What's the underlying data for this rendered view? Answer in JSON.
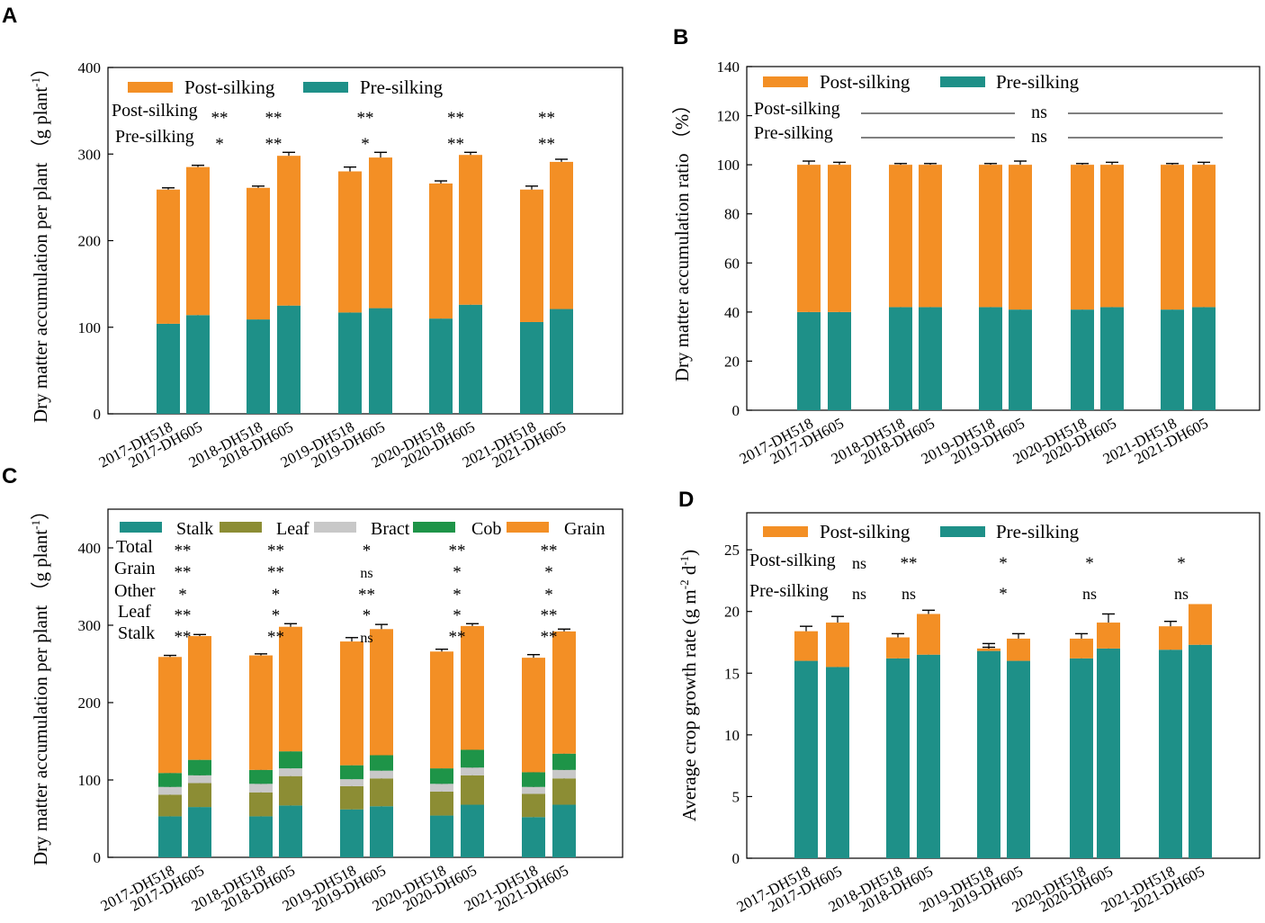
{
  "colors": {
    "post": "#F38F25",
    "pre": "#1E9088",
    "stalk": "#1E9088",
    "leaf": "#8C8D34",
    "bract": "#C8C8C8",
    "cob": "#1E9448",
    "grain": "#F38F25"
  },
  "chart_data": [
    {
      "panel": "A",
      "type": "bar",
      "stacked": true,
      "categories": [
        "2017-DH518",
        "2017-DH605",
        "2018-DH518",
        "2018-DH605",
        "2019-DH518",
        "2019-DH605",
        "2020-DH518",
        "2020-DH605",
        "2021-DH518",
        "2021-DH605"
      ],
      "series": [
        {
          "name": "Pre-silking",
          "values": [
            104,
            114,
            109,
            125,
            117,
            122,
            110,
            126,
            106,
            121
          ],
          "errors": [
            4,
            3,
            3,
            3,
            2,
            3,
            2,
            2,
            3,
            2
          ]
        },
        {
          "name": "Post-silking",
          "values": [
            155,
            171,
            152,
            173,
            163,
            174,
            156,
            173,
            153,
            170
          ],
          "errors": [
            2,
            2,
            2,
            4,
            5,
            6,
            3,
            3,
            4,
            3
          ]
        }
      ],
      "legend": [
        "Post-silking",
        "Pre-silking"
      ],
      "ylabel": "Dry matter accumulation per plant  （g plant",
      "ylabel_sup": "-1",
      "ylabel_end": "）",
      "ylim": [
        0,
        400
      ],
      "yticks": [
        0,
        100,
        200,
        300,
        400
      ],
      "sig_labels": [
        "Post-silking",
        "Pre-silking"
      ],
      "sig_rows": [
        [
          "**",
          "**",
          "**",
          "**",
          "**"
        ],
        [
          "*",
          "**",
          "*",
          "**",
          "**"
        ]
      ]
    },
    {
      "panel": "B",
      "type": "bar",
      "stacked": true,
      "categories": [
        "2017-DH518",
        "2017-DH605",
        "2018-DH518",
        "2018-DH605",
        "2019-DH518",
        "2019-DH605",
        "2020-DH518",
        "2020-DH605",
        "2021-DH518",
        "2021-DH605"
      ],
      "series": [
        {
          "name": "Pre-silking",
          "values": [
            40,
            40,
            42,
            42,
            42,
            41,
            41,
            42,
            41,
            42
          ],
          "errors": [
            1.5,
            1,
            0.5,
            0.5,
            0.5,
            1.5,
            0.5,
            1,
            0.5,
            1
          ]
        },
        {
          "name": "Post-silking",
          "values": [
            60,
            60,
            58,
            58,
            58,
            59,
            59,
            58,
            59,
            58
          ],
          "errors": [
            1.5,
            1,
            0.5,
            0.5,
            0.5,
            1.5,
            0.5,
            1,
            0.5,
            1
          ]
        }
      ],
      "legend": [
        "Post-silking",
        "Pre-silking"
      ],
      "ylabel": "Dry matter accumulation ratio （%）",
      "ylim": [
        0,
        140
      ],
      "yticks": [
        0,
        20,
        40,
        60,
        80,
        100,
        120,
        140
      ],
      "sig_labels": [
        "Post-silking",
        "Pre-silking"
      ],
      "sig_text": [
        "ns",
        "ns"
      ]
    },
    {
      "panel": "C",
      "type": "bar",
      "stacked": true,
      "categories": [
        "2017-DH518",
        "2017-DH605",
        "2018-DH518",
        "2018-DH605",
        "2019-DH518",
        "2019-DH605",
        "2020-DH518",
        "2020-DH605",
        "2021-DH518",
        "2021-DH605"
      ],
      "series": [
        {
          "name": "Stalk",
          "values": [
            53,
            65,
            53,
            67,
            62,
            66,
            54,
            68,
            52,
            68
          ],
          "errors": [
            2,
            2,
            3,
            2,
            2,
            2,
            2,
            2,
            2,
            2
          ]
        },
        {
          "name": "Leaf",
          "values": [
            28,
            31,
            31,
            38,
            30,
            36,
            31,
            38,
            30,
            34
          ],
          "errors": [
            2,
            2,
            2,
            2,
            2,
            2,
            2,
            2,
            2,
            2
          ]
        },
        {
          "name": "Bract",
          "values": [
            10,
            10,
            11,
            10,
            9,
            10,
            10,
            10,
            9,
            11
          ],
          "errors": [
            1,
            1,
            1,
            1,
            1,
            1,
            1,
            1,
            1,
            1
          ]
        },
        {
          "name": "Cob",
          "values": [
            18,
            20,
            18,
            22,
            18,
            20,
            20,
            23,
            19,
            21
          ],
          "errors": [
            1,
            1,
            1,
            1,
            1,
            1,
            1,
            1,
            1,
            1
          ]
        },
        {
          "name": "Grain",
          "values": [
            150,
            160,
            148,
            161,
            160,
            163,
            151,
            160,
            148,
            158
          ],
          "errors": [
            2,
            2,
            2,
            4,
            5,
            6,
            3,
            3,
            4,
            3
          ]
        }
      ],
      "legend": [
        "Stalk",
        "Leaf",
        "Bract",
        "Cob",
        "Grain"
      ],
      "ylabel": "Dry matter accumulation per plant  （g plant",
      "ylabel_sup": "-1",
      "ylabel_end": "）",
      "ylim": [
        0,
        450
      ],
      "yticks": [
        0,
        100,
        200,
        300,
        400
      ],
      "sig_labels": [
        "Total",
        "Grain",
        "Other",
        "Leaf",
        "Stalk"
      ],
      "sig_rows": [
        [
          "**",
          "**",
          "*",
          "**",
          "**"
        ],
        [
          "**",
          "**",
          "ns",
          "*",
          "*"
        ],
        [
          "*",
          "*",
          "**",
          "*",
          "*"
        ],
        [
          "**",
          "*",
          "*",
          "*",
          "**"
        ],
        [
          "**",
          "**",
          "ns",
          "**",
          "**"
        ]
      ]
    },
    {
      "panel": "D",
      "type": "bar",
      "stacked": true,
      "categories": [
        "2017-DH518",
        "2017-DH605",
        "2018-DH518",
        "2018-DH605",
        "2019-DH518",
        "2019-DH605",
        "2020-DH518",
        "2020-DH605",
        "2021-DH518",
        "2021-DH605"
      ],
      "series": [
        {
          "name": "Pre-silking",
          "values": [
            16.0,
            15.5,
            16.2,
            16.5,
            16.8,
            16.0,
            16.2,
            17.0,
            16.9,
            17.3
          ],
          "errors": [
            0.7,
            0.5,
            0.6,
            0.3,
            0.3,
            0.3,
            0.5,
            0.3,
            0.6,
            0.4
          ]
        },
        {
          "name": "Post-silking",
          "values": [
            2.4,
            3.6,
            1.7,
            3.3,
            0.2,
            1.8,
            1.6,
            2.1,
            1.9,
            3.3
          ],
          "errors": [
            0.4,
            0.5,
            0.3,
            0.3,
            0.4,
            0.4,
            0.4,
            0.7,
            0.4,
            0
          ]
        }
      ],
      "legend": [
        "Post-silking",
        "Pre-silking"
      ],
      "ylabel": "Average crop growth rate (g m",
      "ylabel_sup": "-2",
      "ylabel_mid": " d",
      "ylabel_sup2": "-1",
      "ylabel_end": ")",
      "ylim": [
        0,
        28
      ],
      "yticks": [
        0,
        5,
        10,
        15,
        20,
        25
      ],
      "sig_labels": [
        "Post-silking",
        "Pre-silking"
      ],
      "sig_rows": [
        [
          "ns",
          "**",
          "*",
          "*",
          "*"
        ],
        [
          "ns",
          "ns",
          "*",
          "ns",
          "ns"
        ]
      ]
    }
  ],
  "panel_labels": [
    "A",
    "B",
    "C",
    "D"
  ]
}
